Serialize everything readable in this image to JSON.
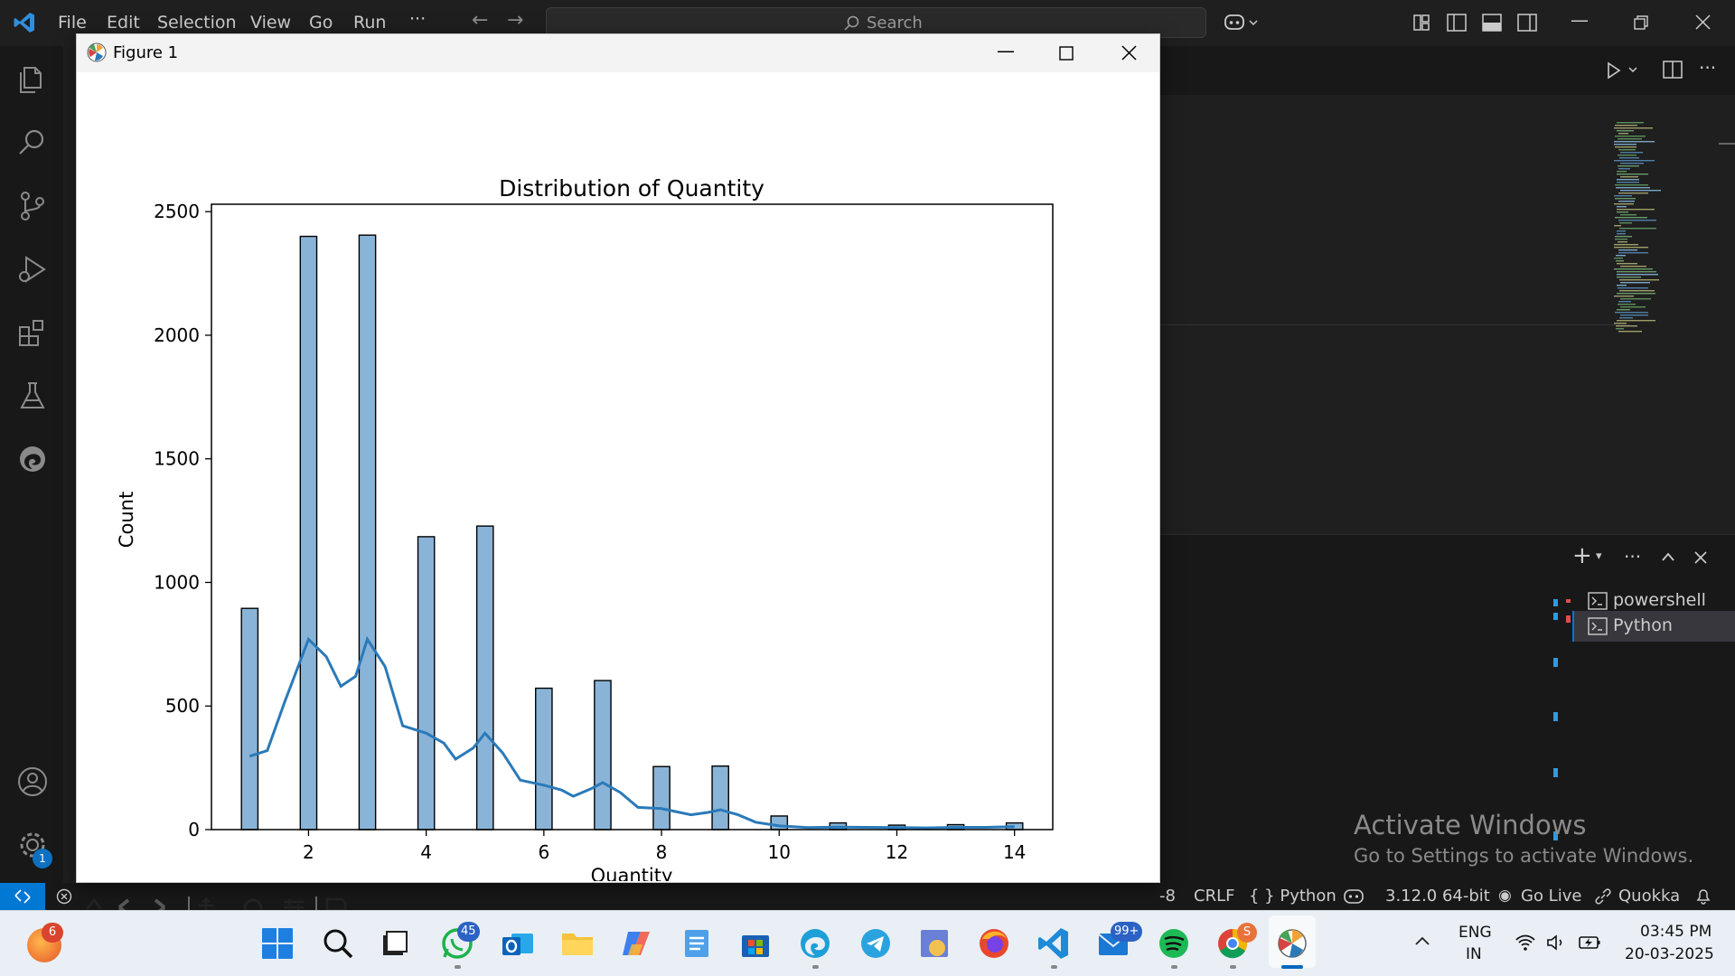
{
  "menu": {
    "file": "File",
    "edit": "Edit",
    "selection": "Selection",
    "view": "View",
    "go": "Go",
    "run": "Run",
    "more": "···"
  },
  "search": {
    "placeholder": "Search"
  },
  "figure_window": {
    "title": "Figure 1"
  },
  "chart_data": {
    "type": "bar",
    "title": "Distribution of Quantity",
    "xlabel": "Quantity",
    "ylabel": "Count",
    "xlim": [
      0.35,
      14.65
    ],
    "ylim": [
      0,
      2530
    ],
    "xticks": [
      2,
      4,
      6,
      8,
      10,
      12,
      14
    ],
    "yticks": [
      0,
      500,
      1000,
      1500,
      2000,
      2500
    ],
    "bar_color": "#89b4d8",
    "kde_color": "#2a7ab9",
    "bar_width": 0.28,
    "bars": [
      {
        "x": 1,
        "count": 895
      },
      {
        "x": 2,
        "count": 2400
      },
      {
        "x": 3,
        "count": 2405
      },
      {
        "x": 4,
        "count": 1185
      },
      {
        "x": 5,
        "count": 1228
      },
      {
        "x": 6,
        "count": 572
      },
      {
        "x": 7,
        "count": 603
      },
      {
        "x": 8,
        "count": 255
      },
      {
        "x": 9,
        "count": 257
      },
      {
        "x": 10,
        "count": 55
      },
      {
        "x": 11,
        "count": 27
      },
      {
        "x": 12,
        "count": 18
      },
      {
        "x": 13,
        "count": 20
      },
      {
        "x": 14,
        "count": 27
      }
    ],
    "kde": [
      [
        1.0,
        297
      ],
      [
        1.3,
        320
      ],
      [
        1.6,
        520
      ],
      [
        2.0,
        770
      ],
      [
        2.3,
        700
      ],
      [
        2.55,
        580
      ],
      [
        2.8,
        620
      ],
      [
        3.0,
        770
      ],
      [
        3.3,
        660
      ],
      [
        3.6,
        420
      ],
      [
        4.0,
        390
      ],
      [
        4.3,
        350
      ],
      [
        4.5,
        285
      ],
      [
        4.8,
        330
      ],
      [
        5.0,
        390
      ],
      [
        5.3,
        310
      ],
      [
        5.6,
        200
      ],
      [
        6.0,
        180
      ],
      [
        6.3,
        160
      ],
      [
        6.5,
        135
      ],
      [
        6.8,
        165
      ],
      [
        7.0,
        190
      ],
      [
        7.3,
        150
      ],
      [
        7.6,
        90
      ],
      [
        8.0,
        85
      ],
      [
        8.3,
        70
      ],
      [
        8.5,
        60
      ],
      [
        8.8,
        70
      ],
      [
        9.0,
        80
      ],
      [
        9.3,
        60
      ],
      [
        9.6,
        30
      ],
      [
        10.0,
        15
      ],
      [
        10.5,
        8
      ],
      [
        11.0,
        10
      ],
      [
        11.5,
        9
      ],
      [
        12.0,
        8
      ],
      [
        12.5,
        7
      ],
      [
        13.0,
        9
      ],
      [
        13.5,
        9
      ],
      [
        14.0,
        12
      ]
    ]
  },
  "terminal": {
    "items": [
      "powershell",
      "Python"
    ]
  },
  "watermark": {
    "line1": "Activate Windows",
    "line2": "Go to Settings to activate Windows."
  },
  "statusbar": {
    "encoding_tail": "-8",
    "eol": "CRLF",
    "language": "{ } Python",
    "interpreter": "3.12.0 64-bit",
    "golive": "Go Live",
    "quokka": "Quokka"
  },
  "gear_badge": "1",
  "taskbar": {
    "widget_badge": "6",
    "whatsapp_badge": "45",
    "mail_badge": "99+",
    "chrome_badge": "S",
    "lang1": "ENG",
    "lang2": "IN",
    "time": "03:45 PM",
    "date": "20-03-2025"
  }
}
